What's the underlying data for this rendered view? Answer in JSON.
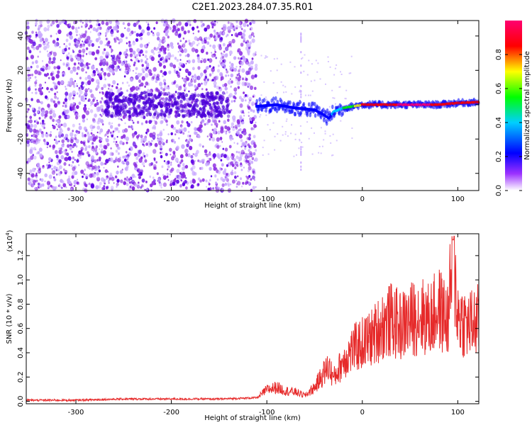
{
  "title": "C2E1.2023.284.07.35.R01",
  "colors": {
    "spectrogram_palette": [
      "#ffffff",
      "#9b30ff",
      "#0000ff",
      "#00cfff",
      "#00ff00",
      "#ffff00",
      "#ff0000",
      "#ff0070"
    ],
    "snr_line": "#e62a2a"
  },
  "chart_data": [
    {
      "type": "heatmap",
      "title": "",
      "xlabel": "Height of straight line (km)",
      "ylabel": "Frequency (Hz)",
      "xlim": [
        -352,
        122
      ],
      "ylim": [
        -50,
        49
      ],
      "xticks": [
        -300,
        -200,
        -100,
        0,
        100
      ],
      "yticks": [
        -40,
        -20,
        0,
        20,
        40
      ],
      "xtick_labels": [
        "-300",
        "-200",
        "-100",
        "0",
        "100"
      ],
      "ytick_labels": [
        "-40",
        "-20",
        "0",
        "20",
        "40"
      ],
      "colorbar": {
        "label": "Normalized spectral amplitude",
        "range": [
          0,
          1
        ],
        "ticks": [
          0.0,
          0.2,
          0.4,
          0.6,
          0.8
        ],
        "tick_labels": [
          "0.0",
          "0.2",
          "0.4",
          "0.6",
          "0.8"
        ]
      },
      "regions": [
        {
          "x_range": [
            -352,
            -111
          ],
          "description_amplitude": 0.15,
          "freq_range": [
            -50,
            49
          ]
        },
        {
          "x_range": [
            -111,
            122
          ],
          "description_amplitude": 0.9,
          "freq_range": [
            -5,
            5
          ]
        }
      ],
      "carrier_track": {
        "x": [
          -111,
          -90,
          -70,
          -50,
          -40,
          -35,
          -30,
          -20,
          -10,
          0,
          20,
          50,
          80,
          100,
          122
        ],
        "y": [
          -1,
          0,
          -2,
          -3,
          -6,
          -8,
          -4,
          -2,
          -1,
          0,
          0,
          0,
          0,
          1,
          1.5
        ],
        "amplitude": [
          0.35,
          0.35,
          0.35,
          0.35,
          0.3,
          0.3,
          0.4,
          0.5,
          0.6,
          0.8,
          0.9,
          0.95,
          0.92,
          0.9,
          0.85
        ]
      },
      "grid": false
    },
    {
      "type": "line",
      "title": "",
      "xlabel": "Height of straight line (km)",
      "ylabel": "SNR (10 * v/v)",
      "y_multiplier": "(x10",
      "y_multiplier_exp": "4",
      "y_multiplier_close": ")",
      "xlim": [
        -352,
        122
      ],
      "ylim": [
        -0.02,
        1.38
      ],
      "xticks": [
        -300,
        -200,
        -100,
        0,
        100
      ],
      "yticks": [
        0.0,
        0.2,
        0.4,
        0.6,
        0.8,
        1.0,
        1.2
      ],
      "xtick_labels": [
        "-300",
        "-200",
        "-100",
        "0",
        "100"
      ],
      "ytick_labels": [
        "0.0",
        "0.2",
        "0.4",
        "0.6",
        "0.8",
        "1.0",
        "1.2"
      ],
      "series": [
        {
          "x": [
            -352,
            -300,
            -250,
            -200,
            -150,
            -110,
            -100,
            -90,
            -80,
            -70,
            -60,
            -50,
            -40,
            -35,
            -30,
            -20,
            -10,
            0,
            10,
            20,
            30,
            40,
            50,
            60,
            70,
            80,
            90,
            95,
            100,
            110,
            122
          ],
          "y": [
            0.01,
            0.01,
            0.02,
            0.02,
            0.02,
            0.03,
            0.1,
            0.12,
            0.09,
            0.08,
            0.05,
            0.12,
            0.25,
            0.3,
            0.2,
            0.35,
            0.45,
            0.5,
            0.55,
            0.65,
            0.7,
            0.65,
            0.7,
            0.75,
            0.7,
            0.8,
            0.7,
            1.33,
            0.75,
            0.65,
            0.7
          ]
        }
      ],
      "grid": false
    }
  ]
}
